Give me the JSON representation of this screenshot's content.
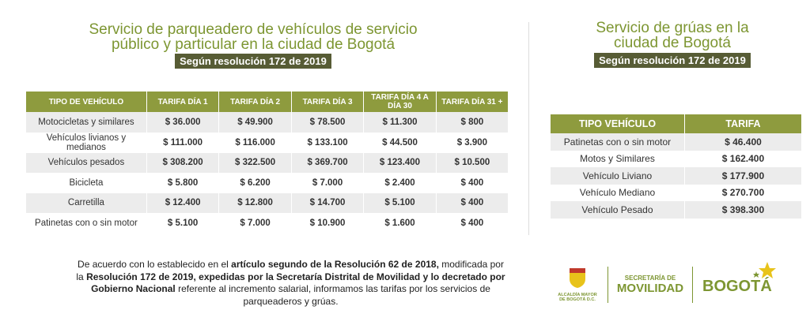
{
  "left": {
    "title": [
      "Servicio de parqueadero de vehículos de servicio",
      "público y particular en la ciudad de Bogotá"
    ],
    "badge": "Según resolución 172 de 2019",
    "table": {
      "headers": [
        "TIPO DE VEHÍCULO",
        "TARIFA DÍA 1",
        "TARIFA DÍA 2",
        "TARIFA DÍA 3",
        "TARIFA DÍA 4 A DÍA 30",
        "TARIFA DÍA 31 +"
      ],
      "rows": [
        [
          "Motocicletas y similares",
          "$ 36.000",
          "$ 49.900",
          "$ 78.500",
          "$ 11.300",
          "$ 800"
        ],
        [
          "Vehículos livianos y medianos",
          "$ 111.000",
          "$ 116.000",
          "$ 133.100",
          "$ 44.500",
          "$ 3.900"
        ],
        [
          "Vehículos pesados",
          "$ 308.200",
          "$ 322.500",
          "$ 369.700",
          "$ 123.400",
          "$ 10.500"
        ],
        [
          "Bicicleta",
          "$ 5.800",
          "$ 6.200",
          "$ 7.000",
          "$ 2.400",
          "$ 400"
        ],
        [
          "Carretilla",
          "$ 12.400",
          "$ 12.800",
          "$ 14.700",
          "$ 5.100",
          "$ 400"
        ],
        [
          "Patinetas con o sin motor",
          "$ 5.100",
          "$ 7.000",
          "$ 10.900",
          "$ 1.600",
          "$ 400"
        ]
      ]
    }
  },
  "right": {
    "title": [
      "Servicio de grúas en la",
      "ciudad de Bogotá"
    ],
    "badge": "Según resolución 172 de 2019",
    "table": {
      "headers": [
        "TIPO VEHÍCULO",
        "TARIFA"
      ],
      "rows": [
        [
          "Patinetas con o sin motor",
          "$ 46.400"
        ],
        [
          "Motos y Similares",
          "$ 162.400"
        ],
        [
          "Vehículo Liviano",
          "$ 177.900"
        ],
        [
          "Vehículo Mediano",
          "$ 270.700"
        ],
        [
          "Vehículo Pesado",
          "$ 398.300"
        ]
      ]
    }
  },
  "footer": {
    "paragraph": [
      {
        "text": "De acuerdo con lo establecido en el ",
        "bold": false
      },
      {
        "text": "artículo segundo de la Resolución 62 de 2018,",
        "bold": true
      },
      {
        "text": " modificada por la ",
        "bold": false
      },
      {
        "text": "Resolución 172 de 2019, expedidas por la Secretaría Distrital de Movilidad y lo decretado por Gobierno Nacional",
        "bold": true
      },
      {
        "text": " referente al incremento salarial, informamos las tarifas por los servicios de parqueaderos y grúas.",
        "bold": false
      }
    ],
    "logos": {
      "alcaldia": "ALCALDÍA MAYOR DE BOGOTÁ D.C.",
      "secretaria_top": "SECRETARÍA DE",
      "secretaria_bottom": "MOVILIDAD",
      "bogota": "BOGOTÁ"
    }
  }
}
